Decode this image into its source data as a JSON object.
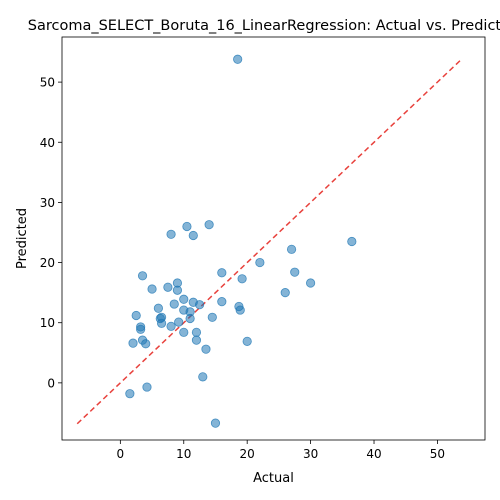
{
  "chart_data": {
    "type": "scatter",
    "title": "Sarcoma_SELECT_Boruta_16_LinearRegression: Actual vs. Predicted",
    "xlabel": "Actual",
    "ylabel": "Predicted",
    "xlim": [
      -9.2,
      57.5
    ],
    "ylim": [
      -9.5,
      57.5
    ],
    "xticks": [
      0,
      10,
      20,
      30,
      40,
      50
    ],
    "yticks": [
      0,
      10,
      20,
      30,
      40,
      50
    ],
    "grid": false,
    "reference_line": {
      "label": "",
      "from": [
        -6.8,
        -6.8
      ],
      "to": [
        53.8,
        53.8
      ],
      "color": "#e8413c",
      "style": "dashed"
    },
    "series": [
      {
        "name": "",
        "color": "#1f77b4",
        "x": [
          18.5,
          36.5,
          14.0,
          10.5,
          8.0,
          11.5,
          27.0,
          22.0,
          19.2,
          27.5,
          30.0,
          26.0,
          3.5,
          16.0,
          9.0,
          7.5,
          5.0,
          9.0,
          10.0,
          8.5,
          11.5,
          12.5,
          16.0,
          18.7,
          18.9,
          6.0,
          10.0,
          11.0,
          2.5,
          14.5,
          6.5,
          6.3,
          11.0,
          6.5,
          9.2,
          3.2,
          8.0,
          3.2,
          10.0,
          12.0,
          3.5,
          12.0,
          20.0,
          4.0,
          13.5,
          2.0,
          13.0,
          4.2,
          1.5,
          15.0
        ],
        "y": [
          53.8,
          23.5,
          26.3,
          26.0,
          24.7,
          24.5,
          22.2,
          20.0,
          17.3,
          18.4,
          16.6,
          15.0,
          17.8,
          18.3,
          16.6,
          15.9,
          15.6,
          15.4,
          13.9,
          13.1,
          13.4,
          13.0,
          13.5,
          12.7,
          12.1,
          12.4,
          12.1,
          11.8,
          11.2,
          10.9,
          10.9,
          10.7,
          10.7,
          9.9,
          10.1,
          9.3,
          9.4,
          8.9,
          8.4,
          8.4,
          7.1,
          7.1,
          6.9,
          6.5,
          5.6,
          6.6,
          1.0,
          -0.7,
          -1.8,
          -6.7
        ]
      }
    ]
  }
}
